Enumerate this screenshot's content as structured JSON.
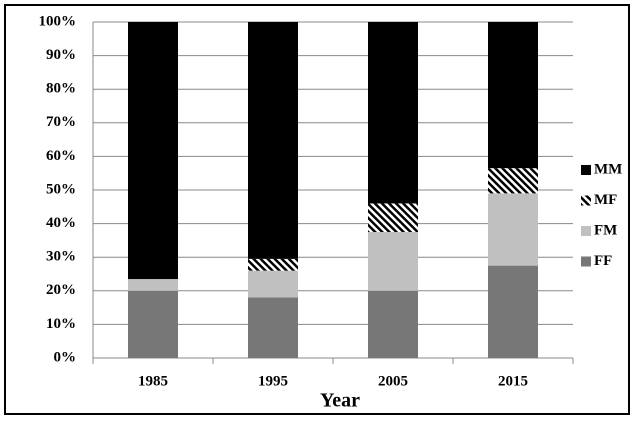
{
  "chart_data": {
    "type": "stacked_bar",
    "categories": [
      "1985",
      "1995",
      "2005",
      "2015"
    ],
    "x_label": "Year",
    "series": [
      {
        "name": "FF",
        "color": "#777777",
        "values": [
          20,
          18,
          20,
          27.5
        ]
      },
      {
        "name": "FM",
        "color": "#c0c0c0",
        "values": [
          3.5,
          8,
          17.5,
          21.5
        ]
      },
      {
        "name": "MF",
        "color": "#000000",
        "hatch": true,
        "values": [
          0,
          3.5,
          8.5,
          7.5
        ]
      },
      {
        "name": "MM",
        "color": "#000000",
        "values": [
          76.5,
          70.5,
          54,
          43.5
        ]
      }
    ],
    "ylim": [
      0,
      100
    ],
    "yticks": [
      {
        "value": 0,
        "label": "0%"
      },
      {
        "value": 10,
        "label": "10%"
      },
      {
        "value": 20,
        "label": "20%"
      },
      {
        "value": 30,
        "label": "30%"
      },
      {
        "value": 40,
        "label": "40%"
      },
      {
        "value": 50,
        "label": "50%"
      },
      {
        "value": 60,
        "label": "60%"
      },
      {
        "value": 70,
        "label": "70%"
      },
      {
        "value": 80,
        "label": "80%"
      },
      {
        "value": 90,
        "label": "90%"
      },
      {
        "value": 100,
        "label": "100%"
      }
    ],
    "grid": true,
    "legend": "right"
  }
}
